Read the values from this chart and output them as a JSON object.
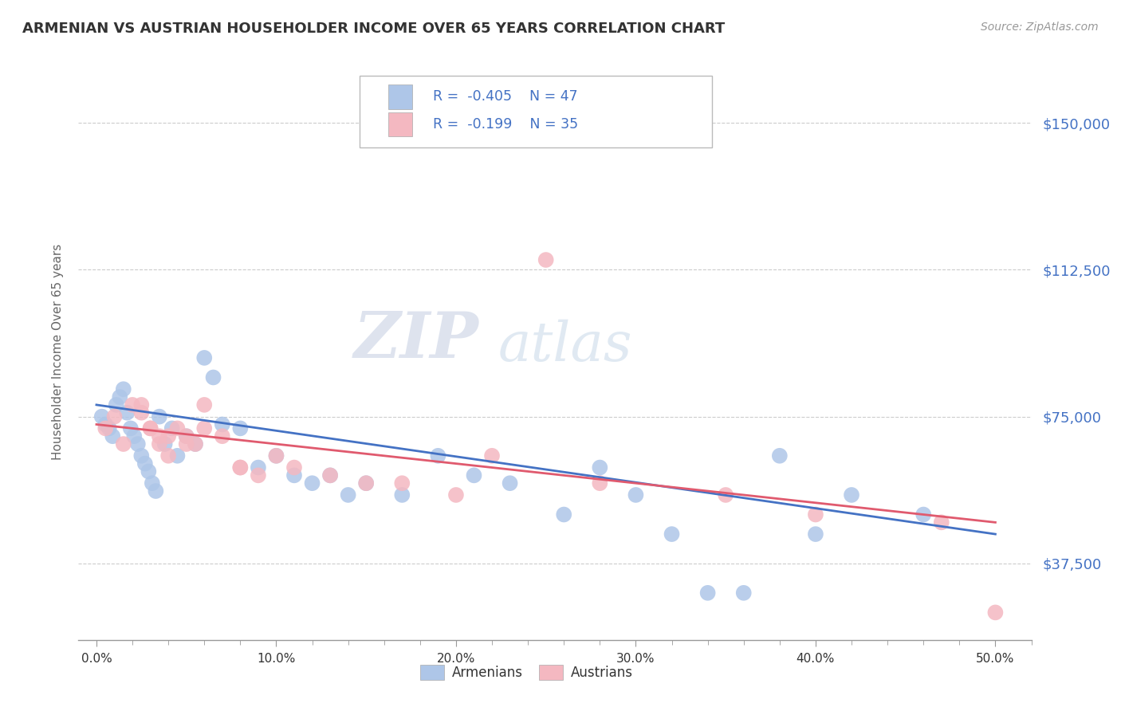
{
  "title": "ARMENIAN VS AUSTRIAN HOUSEHOLDER INCOME OVER 65 YEARS CORRELATION CHART",
  "source": "Source: ZipAtlas.com",
  "ylabel": "Householder Income Over 65 years",
  "ytick_labels": [
    "$37,500",
    "$75,000",
    "$112,500",
    "$150,000"
  ],
  "ytick_values": [
    37500,
    75000,
    112500,
    150000
  ],
  "xtick_positions": [
    0,
    10,
    20,
    30,
    40,
    50
  ],
  "xtick_labels": [
    "0.0%",
    "10.0%",
    "20.0%",
    "30.0%",
    "40.0%",
    "50.0%"
  ],
  "xlim": [
    -1,
    52
  ],
  "ylim": [
    18000,
    165000
  ],
  "armenian_R": -0.405,
  "armenian_N": 47,
  "austrian_R": -0.199,
  "austrian_N": 35,
  "armenian_color": "#aec6e8",
  "austrian_color": "#f4b8c1",
  "armenian_line_color": "#4472c4",
  "austrian_line_color": "#e05a6e",
  "grid_color": "#cccccc",
  "text_color": "#4472c4",
  "title_color": "#333333",
  "watermark_zip": "ZIP",
  "watermark_atlas": "atlas",
  "armenian_x": [
    0.3,
    0.5,
    0.7,
    0.9,
    1.1,
    1.3,
    1.5,
    1.7,
    1.9,
    2.1,
    2.3,
    2.5,
    2.7,
    2.9,
    3.1,
    3.3,
    3.5,
    3.8,
    4.2,
    4.5,
    5.0,
    5.5,
    6.0,
    6.5,
    7.0,
    8.0,
    9.0,
    10.0,
    11.0,
    12.0,
    13.0,
    14.0,
    15.0,
    17.0,
    19.0,
    21.0,
    23.0,
    26.0,
    30.0,
    34.0,
    38.0,
    42.0,
    46.0,
    28.0,
    32.0,
    36.0,
    40.0
  ],
  "armenian_y": [
    75000,
    73000,
    72000,
    70000,
    78000,
    80000,
    82000,
    76000,
    72000,
    70000,
    68000,
    65000,
    63000,
    61000,
    58000,
    56000,
    75000,
    68000,
    72000,
    65000,
    70000,
    68000,
    90000,
    85000,
    73000,
    72000,
    62000,
    65000,
    60000,
    58000,
    60000,
    55000,
    58000,
    55000,
    65000,
    60000,
    58000,
    50000,
    55000,
    30000,
    65000,
    55000,
    50000,
    62000,
    45000,
    30000,
    45000
  ],
  "austrian_x": [
    0.5,
    1.0,
    1.5,
    2.0,
    2.5,
    3.0,
    3.5,
    4.0,
    4.5,
    5.0,
    5.5,
    6.0,
    7.0,
    8.0,
    9.0,
    10.0,
    11.0,
    13.0,
    15.0,
    17.0,
    20.0,
    22.0,
    25.0,
    28.0,
    2.5,
    3.0,
    3.5,
    4.0,
    5.0,
    6.0,
    8.0,
    35.0,
    40.0,
    47.0,
    50.0
  ],
  "austrian_y": [
    72000,
    75000,
    68000,
    78000,
    76000,
    72000,
    68000,
    70000,
    72000,
    70000,
    68000,
    78000,
    70000,
    62000,
    60000,
    65000,
    62000,
    60000,
    58000,
    58000,
    55000,
    65000,
    115000,
    58000,
    78000,
    72000,
    70000,
    65000,
    68000,
    72000,
    62000,
    55000,
    50000,
    48000,
    25000
  ]
}
